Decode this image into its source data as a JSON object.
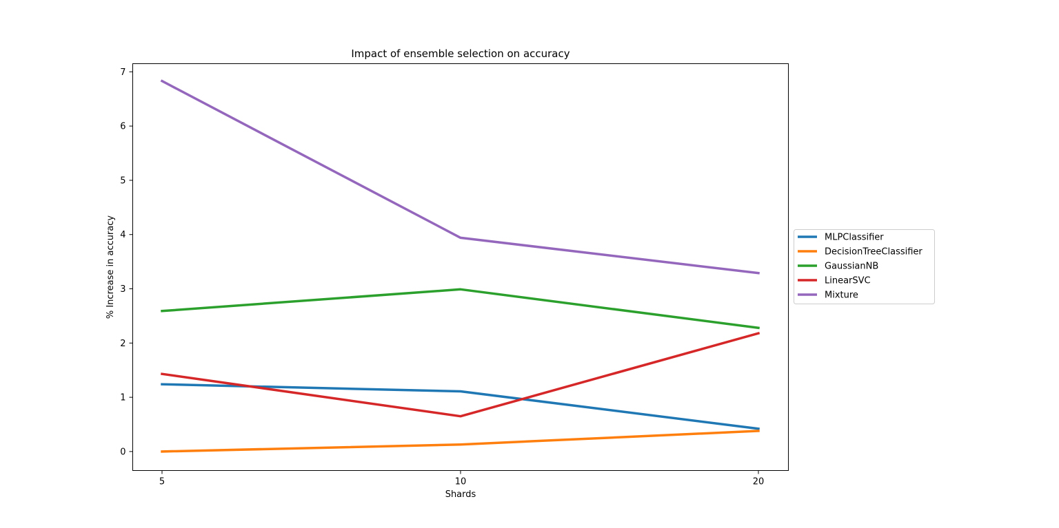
{
  "chart_data": {
    "type": "line",
    "title": "Impact of ensemble selection on accuracy",
    "xlabel": "Shards",
    "ylabel": "% Increase in accuracy",
    "x": [
      5,
      10,
      20
    ],
    "x_ticks": [
      "5",
      "10",
      "20"
    ],
    "y_ticks": [
      "0",
      "1",
      "2",
      "3",
      "4",
      "5",
      "6",
      "7"
    ],
    "ylim": [
      -0.35,
      7.15
    ],
    "grid": false,
    "legend_position": "center-right outside",
    "series": [
      {
        "name": "MLPClassifier",
        "color": "#1f77b4",
        "values": [
          1.24,
          1.11,
          0.42
        ]
      },
      {
        "name": "DecisionTreeClassifier",
        "color": "#ff7f0e",
        "values": [
          0.0,
          0.13,
          0.38
        ]
      },
      {
        "name": "GaussianNB",
        "color": "#2ca02c",
        "values": [
          2.59,
          2.99,
          2.28
        ]
      },
      {
        "name": "LinearSVC",
        "color": "#d62728",
        "values": [
          1.43,
          0.65,
          2.18
        ]
      },
      {
        "name": "Mixture",
        "color": "#9467bd",
        "values": [
          6.83,
          3.94,
          3.29
        ]
      }
    ]
  }
}
